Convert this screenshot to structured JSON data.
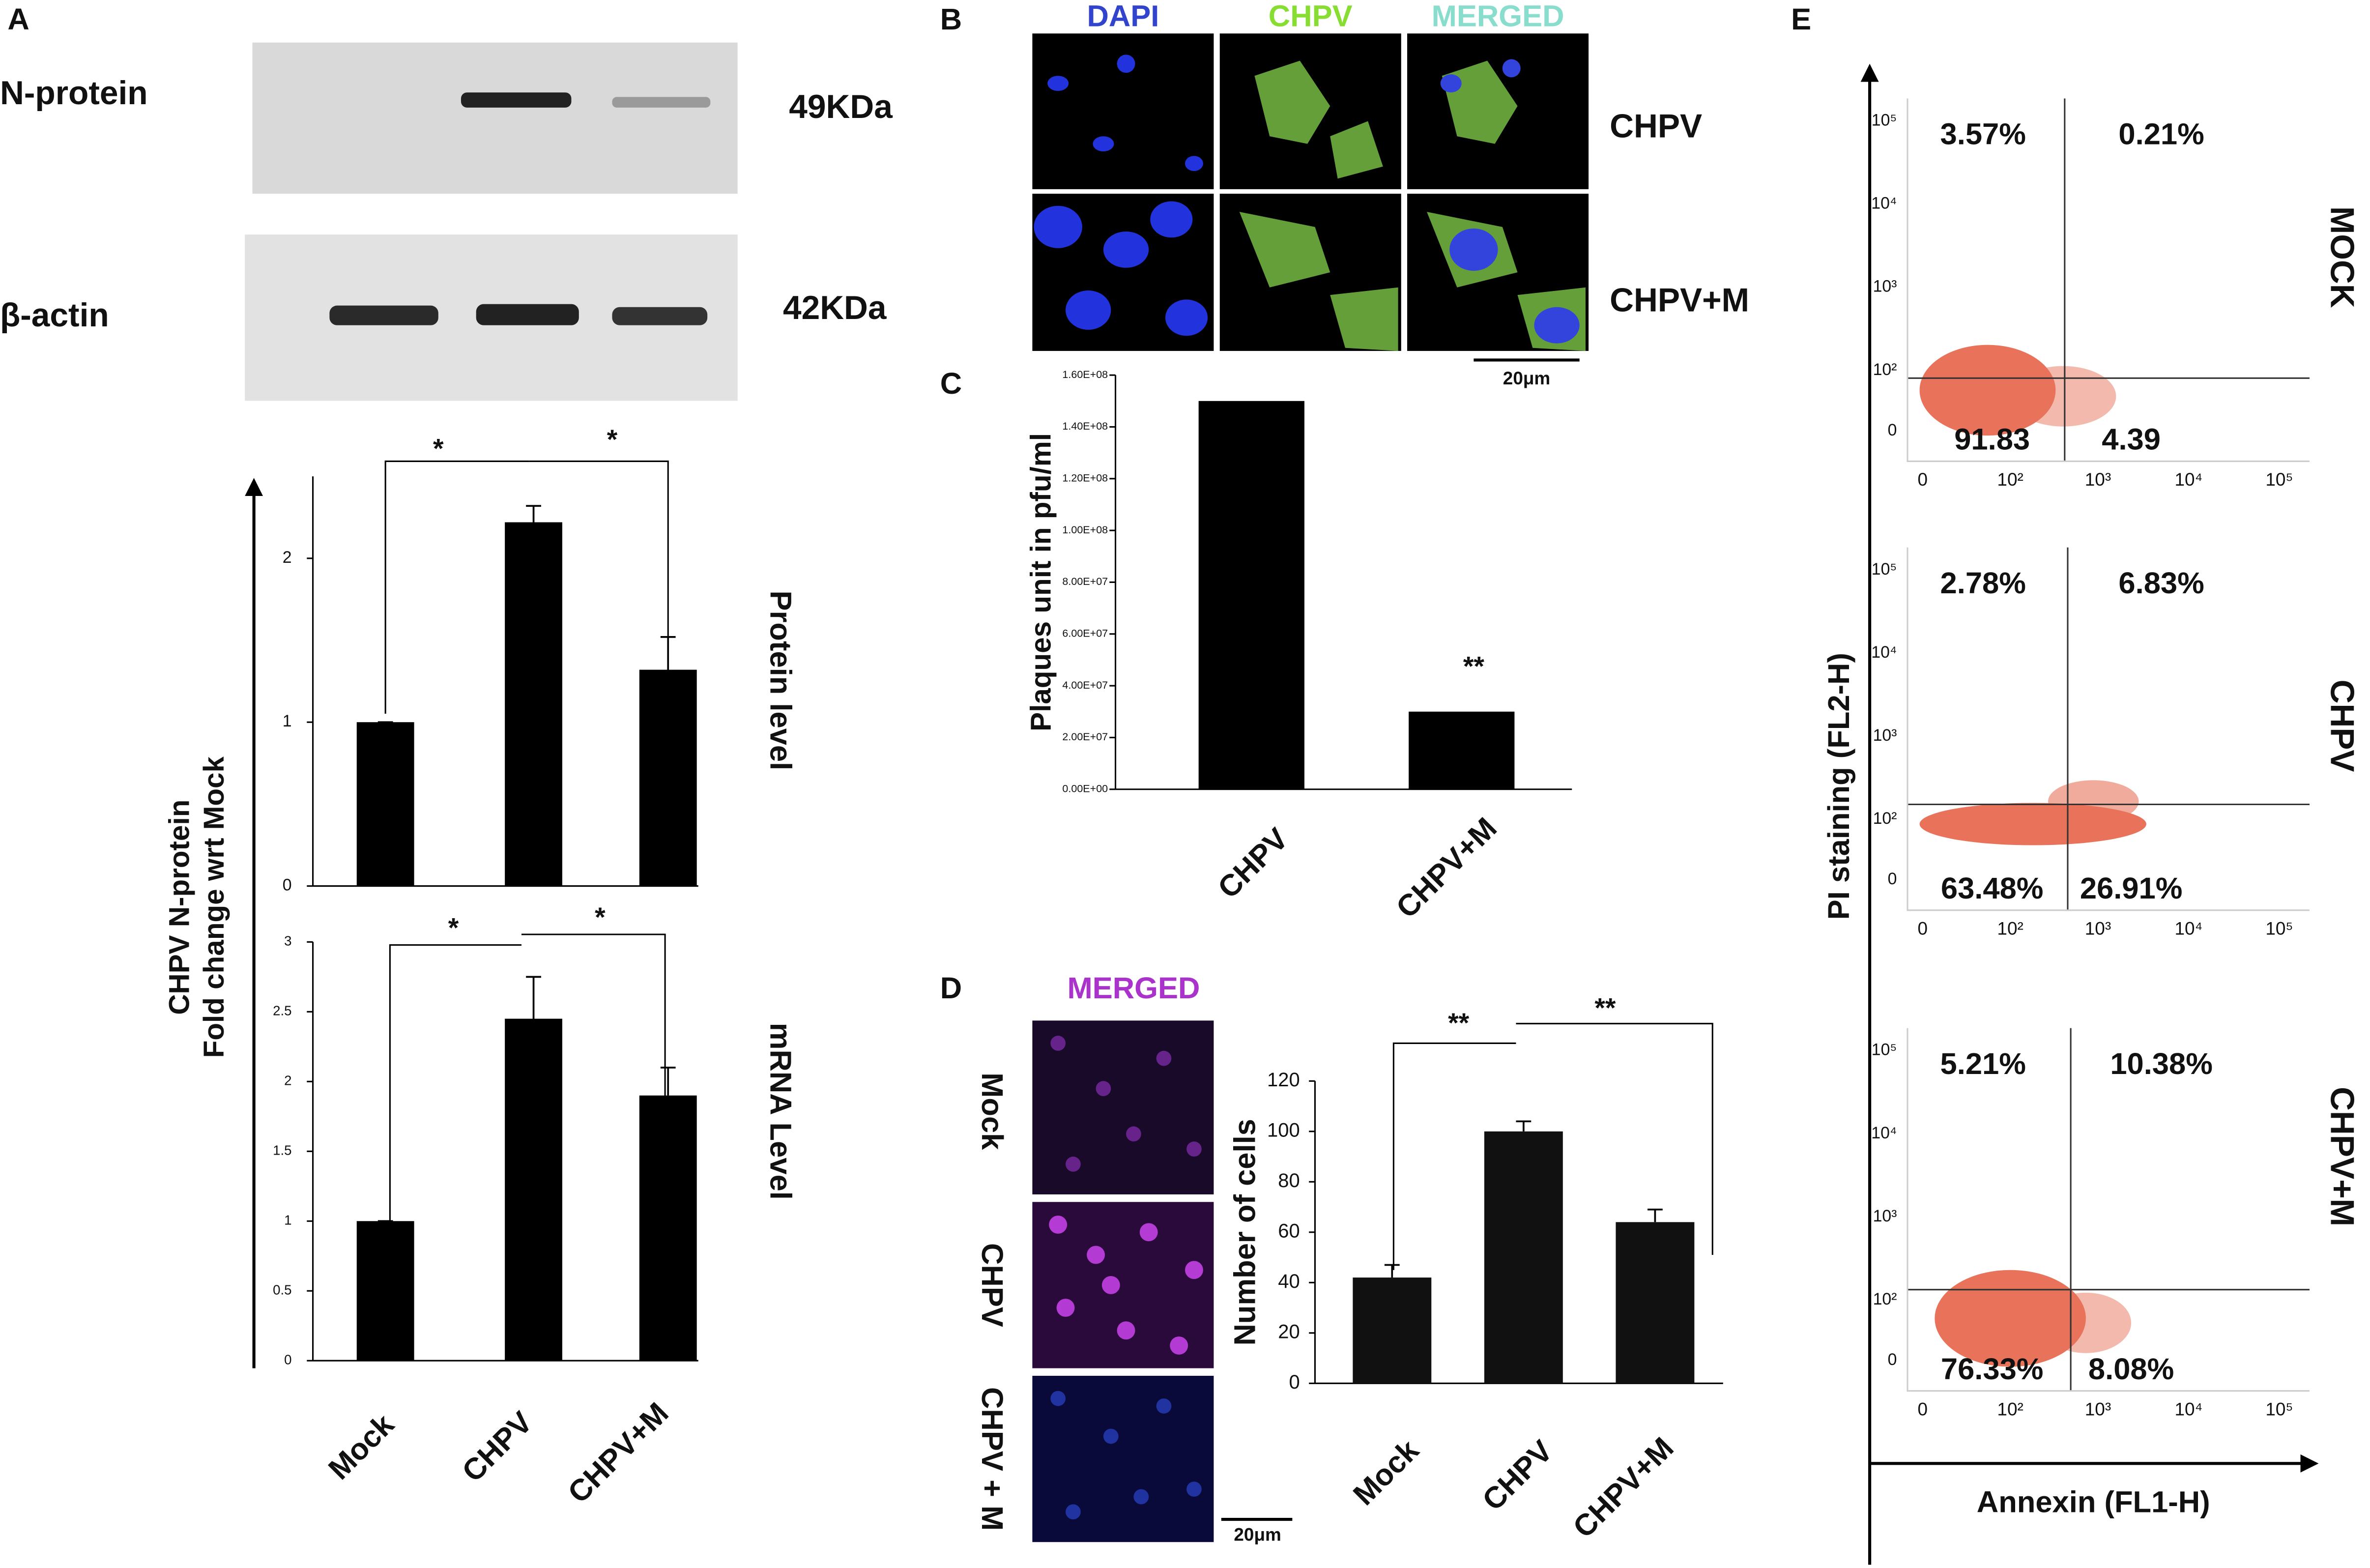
{
  "panels": {
    "A": {
      "label": "A",
      "blots": [
        {
          "name": "N-protein",
          "size": "49KDa"
        },
        {
          "name": "β-actin",
          "size": "42KDa"
        }
      ],
      "ylabel": [
        "CHPV N-protein",
        "Fold change wrt Mock"
      ]
    },
    "B": {
      "label": "B",
      "columns": [
        "DAPI",
        "CHPV",
        "MERGED"
      ],
      "rows": [
        "CHPV",
        "CHPV+M"
      ],
      "scale": "20μm"
    },
    "C": {
      "label": "C"
    },
    "D": {
      "label": "D",
      "image_title": "MERGED",
      "rows": [
        "Mock",
        "CHPV",
        "CHPV + M"
      ],
      "scale": "20μm"
    },
    "E": {
      "label": "E",
      "xlabel": "Annexin (FL1-H)",
      "ylabel": "PI staining (FL2-H)",
      "xticks": [
        "0",
        "10²",
        "10³",
        "10⁴",
        "10⁵"
      ],
      "yticks": [
        "10⁵",
        "10⁴",
        "10³",
        "10²",
        "0"
      ],
      "plots": [
        {
          "name": "MOCK",
          "quadrants": [
            "3.57%",
            "0.21%",
            "91.83",
            "4.39"
          ]
        },
        {
          "name": "CHPV",
          "quadrants": [
            "2.78%",
            "6.83%",
            "63.48%",
            "26.91%"
          ]
        },
        {
          "name": "CHPV+M",
          "quadrants": [
            "5.21%",
            "10.38%",
            "76.33%",
            "8.08%"
          ]
        }
      ]
    }
  },
  "chart_data": [
    {
      "type": "bar",
      "title": "Protein level",
      "categories": [
        null,
        null,
        null
      ],
      "values": [
        1,
        2.22,
        1.32
      ],
      "errors": [
        0,
        0.1,
        0.2
      ],
      "ylim": [
        0,
        2.5
      ],
      "yticks": [
        0,
        1,
        2
      ],
      "color": "#000000",
      "annotations": [
        "*",
        "*"
      ]
    },
    {
      "type": "bar",
      "title": "mRNA Level",
      "categories": [
        "Mock",
        "CHPV",
        "CHPV+M"
      ],
      "values": [
        1,
        2.45,
        1.9
      ],
      "errors": [
        0,
        0.3,
        0.2
      ],
      "ylim": [
        0,
        3
      ],
      "yticks": [
        0,
        0.5,
        1,
        1.5,
        2,
        2.5,
        3
      ],
      "color": "#000000",
      "annotations": [
        "*",
        "*"
      ]
    },
    {
      "type": "bar",
      "ylabel": "Plaques unit in pfu/ml",
      "categories": [
        "CHPV",
        "CHPV+M"
      ],
      "values": [
        150000000,
        30000000
      ],
      "ylim": [
        0,
        160000000
      ],
      "yticks": [
        {
          "value": 0,
          "label": "0.00E+00"
        },
        {
          "value": 20000000,
          "label": "2.00E+07"
        },
        {
          "value": 40000000,
          "label": "4.00E+07"
        },
        {
          "value": 60000000,
          "label": "6.00E+07"
        },
        {
          "value": 80000000,
          "label": "8.00E+07"
        },
        {
          "value": 100000000,
          "label": "1.00E+08"
        },
        {
          "value": 120000000,
          "label": "1.20E+08"
        },
        {
          "value": 140000000,
          "label": "1.40E+08"
        },
        {
          "value": 160000000,
          "label": "1.60E+08"
        }
      ],
      "color": "#000000",
      "annotations": [
        "**"
      ]
    },
    {
      "type": "bar",
      "ylabel": "Number of cells",
      "categories": [
        "Mock",
        "CHPV",
        "CHPV+M"
      ],
      "values": [
        42,
        100,
        64
      ],
      "errors": [
        5,
        4,
        5
      ],
      "ylim": [
        0,
        120
      ],
      "yticks": [
        0,
        20,
        40,
        60,
        80,
        100,
        120
      ],
      "color": "#111111",
      "annotations": [
        "**",
        "**"
      ]
    }
  ]
}
